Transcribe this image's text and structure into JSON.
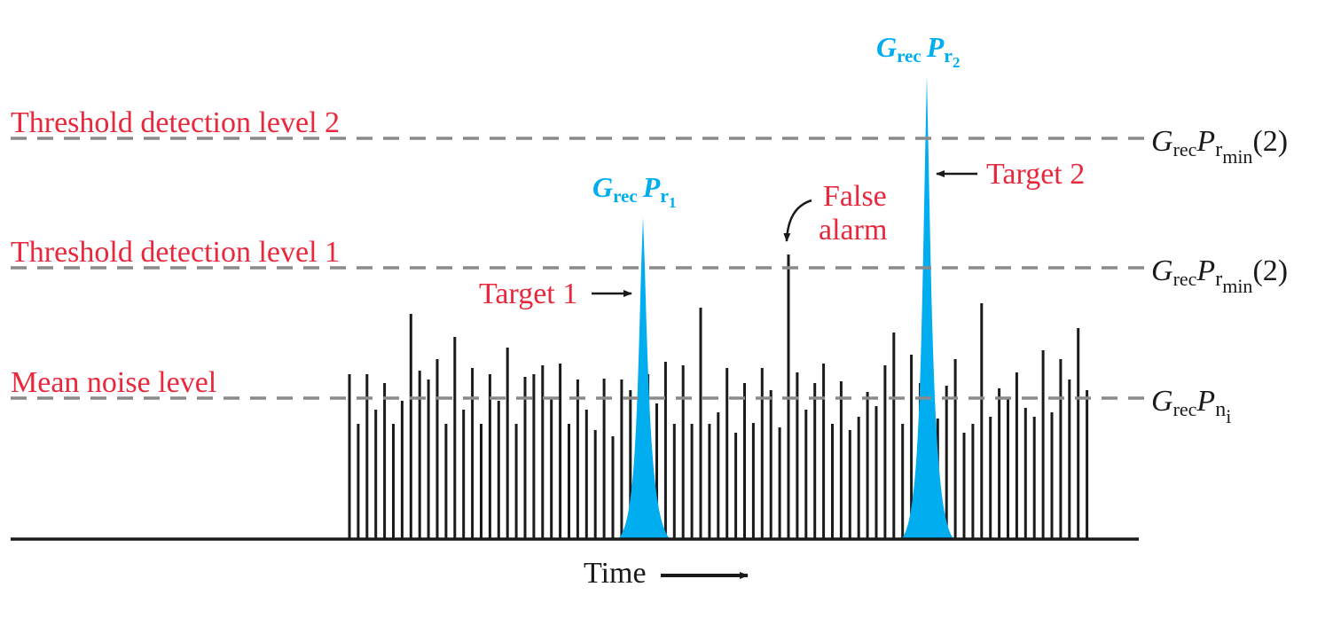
{
  "colors": {
    "label_red": "#e8283c",
    "signal_blue": "#00aeef",
    "dash_gray": "#8a8a8a",
    "ink": "#1a1a1a"
  },
  "levels": {
    "threshold2": {
      "label": "Threshold detection level 2",
      "right_base": "G",
      "right_sub1": "rec",
      "right_p": "P",
      "right_sub2": "r",
      "right_subsub": "min",
      "right_tail": "(2)"
    },
    "threshold1": {
      "label": "Threshold detection level 1",
      "right_base": "G",
      "right_sub1": "rec",
      "right_p": "P",
      "right_sub2": "r",
      "right_subsub": "min",
      "right_tail": "(2)"
    },
    "noise": {
      "label": "Mean noise level",
      "right_base": "G",
      "right_sub1": "rec",
      "right_p": "P",
      "right_sub2": "n",
      "right_subsub": "i"
    }
  },
  "target1": {
    "label": "Target 1",
    "peak_g": "G",
    "peak_g_sub": "rec",
    "peak_p": "P",
    "peak_p_sub": "r",
    "peak_p_subsub": "1"
  },
  "target2": {
    "label": "Target 2",
    "peak_g": "G",
    "peak_g_sub": "rec",
    "peak_p": "P",
    "peak_p_sub": "r",
    "peak_p_subsub": "2"
  },
  "false_alarm": {
    "line1": "False",
    "line2": "alarm"
  },
  "time_axis": {
    "label": "Time"
  }
}
